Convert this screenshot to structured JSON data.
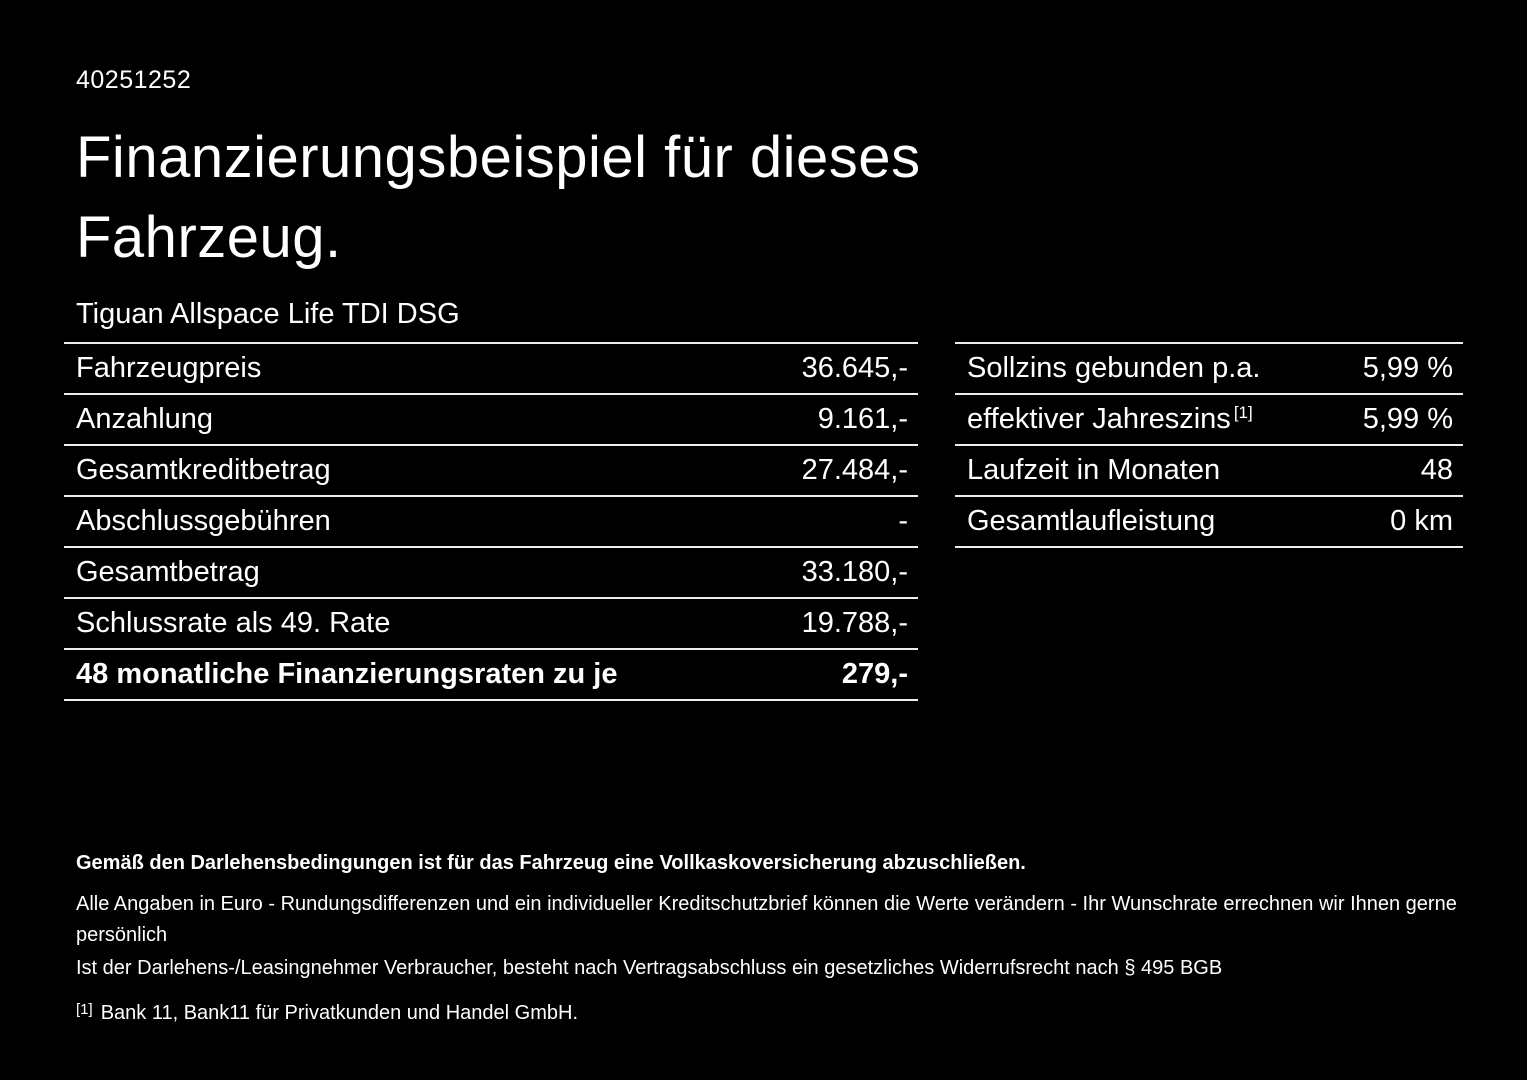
{
  "doc": {
    "id": "40251252",
    "title_line1": "Finanzierungsbeispiel für dieses",
    "title_line2": "Fahrzeug.",
    "vehicle": "Tiguan Allspace Life TDI DSG"
  },
  "finance_table": {
    "rows": [
      {
        "label": "Fahrzeugpreis",
        "value": "36.645,-"
      },
      {
        "label": "Anzahlung",
        "value": "9.161,-"
      },
      {
        "label": "Gesamtkreditbetrag",
        "value": "27.484,-"
      },
      {
        "label": "Abschlussgebühren",
        "value": "-"
      },
      {
        "label": "Gesamtbetrag",
        "value": "33.180,-"
      },
      {
        "label": "Schlussrate als 49. Rate",
        "value": "19.788,-"
      },
      {
        "label": "48 monatliche Finanzierungsraten zu je",
        "value": "279,-"
      }
    ]
  },
  "conditions_table": {
    "rows": [
      {
        "label": "Sollzins gebunden p.a.",
        "value": "5,99 %"
      },
      {
        "label": "effektiver Jahreszins",
        "sup": "[1]",
        "value": "5,99 %"
      },
      {
        "label": "Laufzeit in Monaten",
        "value": "48"
      },
      {
        "label": "Gesamtlaufleistung",
        "value": "0 km"
      }
    ]
  },
  "footer": {
    "line1": "Gemäß den Darlehensbedingungen ist für das Fahrzeug eine Vollkaskoversicherung abzuschließen.",
    "line2": "Alle Angaben in Euro - Rundungsdifferenzen und ein individueller Kreditschutzbrief können die Werte verändern - Ihr Wunschrate errechnen wir Ihnen gerne persönlich",
    "line3": "Ist der Darlehens-/Leasingnehmer Verbraucher, besteht nach Vertragsabschluss ein gesetzliches Widerrufsrecht nach § 495 BGB",
    "footnote_mark": "[1]",
    "footnote_text": "Bank 11, Bank11 für Privatkunden und Handel GmbH."
  },
  "colors": {
    "background": "#000000",
    "text": "#ffffff",
    "divider": "#ededed"
  }
}
